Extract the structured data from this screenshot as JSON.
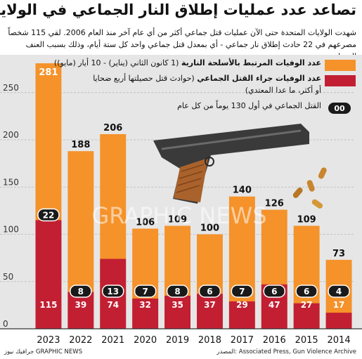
{
  "title": "تصاعد عدد عمليات إطلاق النار الجماعي في الولايات المتحدة",
  "subtitle": "شهدت الولايات المتحدة حتى الآن عمليات قتل جماعي أكثر من أي عام آخر منذ العام 2006. لقي 115 شخصاً مصرعهم في 22 حادث إطلاق نار جماعي - أي بمعدل قتل جماعي واحد كل ستة أيام، وذلك بسبب العنف المسلح",
  "legend": {
    "total_bold": "عدد الوفيات المرتبط بالأسلحة النارية",
    "total_note": "(1 كانون الثاني (يناير) - 10 أيار (مايو))",
    "mass_bold": "عدد الوفيات جراء القتل الجماعي",
    "mass_note": "(حوادث قتل حصيلتها أربع ضحايا",
    "mass_note2": "أو أكثر، ما عدا المعتدي)",
    "incidents_label": "القتل الجماعي في أول 130 يوماً من كل عام",
    "incidents_badge": "00"
  },
  "colors": {
    "total": "#f5922a",
    "mass": "#c21f32",
    "badge": "#1a1a1a",
    "background": "#e6e6e6"
  },
  "watermark": "GRAPHIC NEWS",
  "footer": {
    "source": "المصدر: Associated Press, Gun Violence Archive",
    "credit": "جرافيك نيوز GRAPHIC NEWS"
  },
  "chart_data": {
    "type": "bar",
    "categories": [
      "2023",
      "2022",
      "2021",
      "2020",
      "2019",
      "2018",
      "2017",
      "2016",
      "2015",
      "2014"
    ],
    "series": [
      {
        "name": "عدد الوفيات المرتبط بالأسلحة النارية",
        "values": [
          281,
          188,
          206,
          106,
          109,
          100,
          140,
          126,
          109,
          73
        ]
      },
      {
        "name": "عدد الوفيات جراء القتل الجماعي",
        "values": [
          115,
          39,
          74,
          32,
          35,
          37,
          29,
          47,
          27,
          17
        ]
      }
    ],
    "incidents": [
      22,
      8,
      13,
      7,
      8,
      6,
      7,
      6,
      6,
      4
    ],
    "yticks": [
      0,
      50,
      100,
      150,
      200,
      250
    ],
    "ylim": [
      0,
      290
    ],
    "grid": true
  }
}
